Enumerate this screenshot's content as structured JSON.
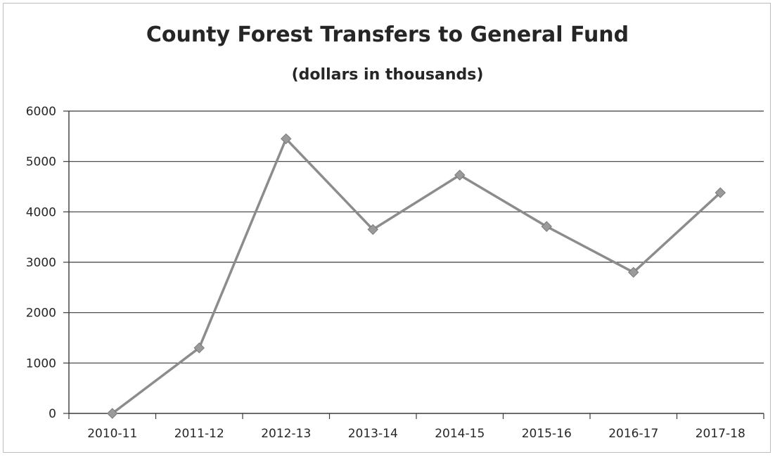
{
  "chart_data": {
    "type": "line",
    "title": "County Forest Transfers to General Fund",
    "subtitle": "(dollars in thousands)",
    "xlabel": "",
    "ylabel": "",
    "categories": [
      "2010-11",
      "2011-12",
      "2012-13",
      "2013-14",
      "2014-15",
      "2015-16",
      "2016-17",
      "2017-18"
    ],
    "series": [
      {
        "values": [
          0,
          1300,
          5450,
          3650,
          4730,
          3710,
          2800,
          4380
        ]
      }
    ],
    "ylim": [
      0,
      6000
    ],
    "yticks": [
      "0",
      "1000",
      "2000",
      "3000",
      "4000",
      "5000",
      "6000"
    ],
    "grid": true,
    "legend": "none",
    "colors": {
      "line": "#8c8c8c",
      "marker": "#9a9a9a",
      "grid": "#3a3a3a",
      "axis": "#3a3a3a",
      "text": "#262626"
    }
  }
}
